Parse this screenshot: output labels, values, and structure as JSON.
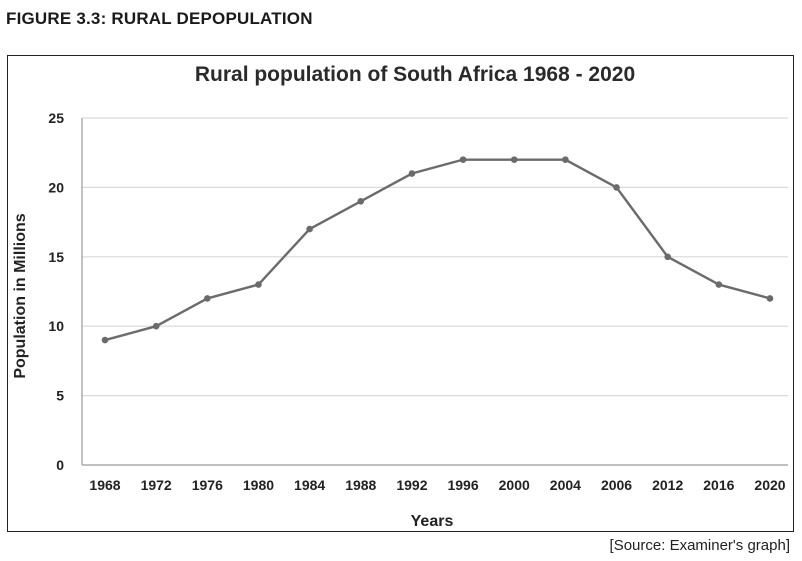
{
  "figure": {
    "heading": "FIGURE 3.3:   RURAL DEPOPULATION",
    "source": "[Source: Examiner's graph]"
  },
  "colors": {
    "line": "#6b6b6b",
    "grid": "#d9d9d9",
    "axis": "#9a9a9a"
  },
  "chart_data": {
    "type": "line",
    "title": "Rural population of South Africa 1968 - 2020",
    "xlabel": "Years",
    "ylabel": "Population in Millions",
    "categories": [
      "1968",
      "1972",
      "1976",
      "1980",
      "1984",
      "1988",
      "1992",
      "1996",
      "2000",
      "2004",
      "2006",
      "2012",
      "2016",
      "2020"
    ],
    "series": [
      {
        "name": "Rural population",
        "values": [
          9,
          10,
          12,
          13,
          17,
          19,
          21,
          22,
          22,
          22,
          20,
          15,
          13,
          12
        ]
      }
    ],
    "ylim": [
      0,
      25
    ],
    "yticks": [
      0,
      5,
      10,
      15,
      20,
      25
    ],
    "grid": true,
    "legend": "none"
  }
}
